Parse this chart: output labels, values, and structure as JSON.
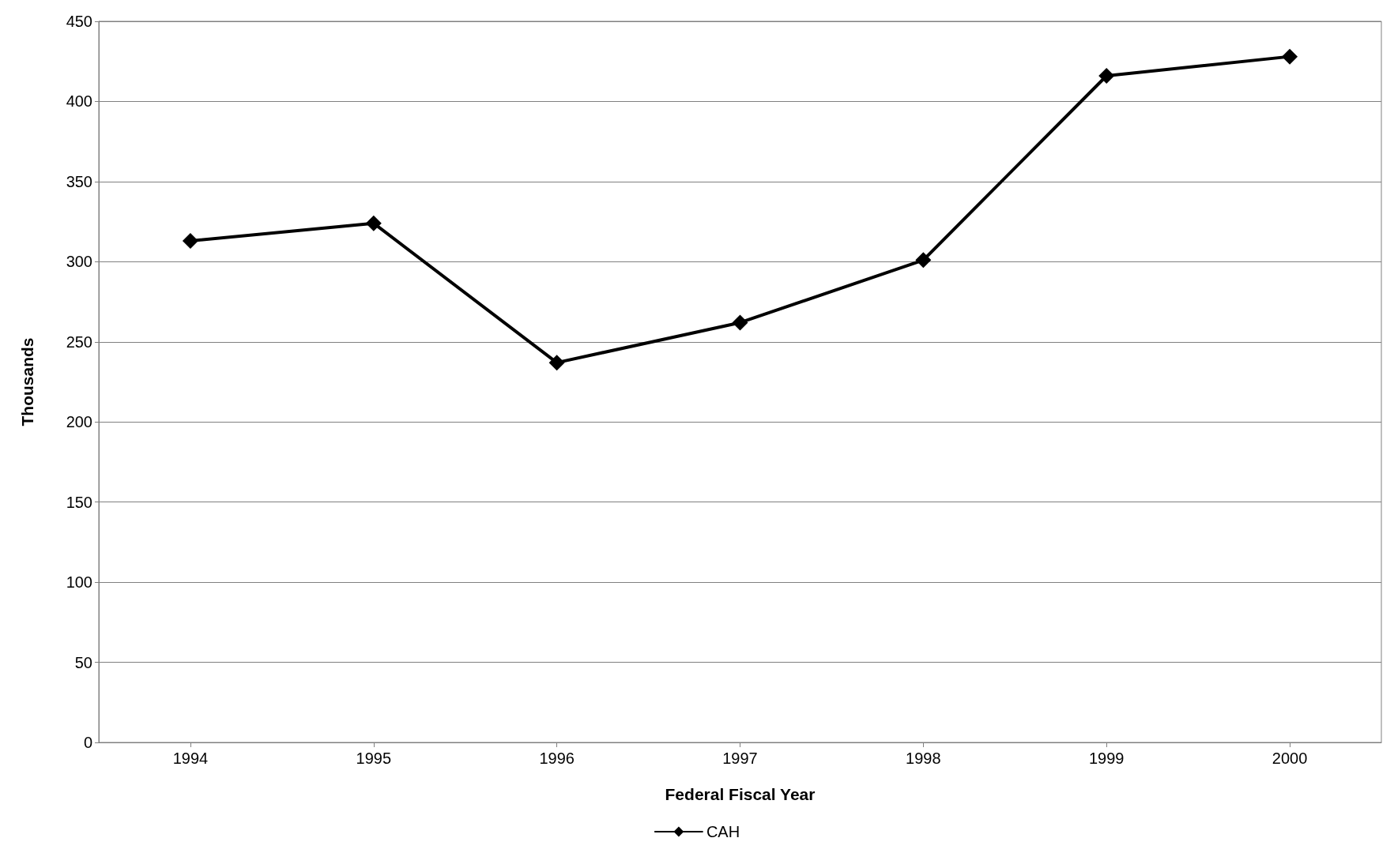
{
  "chart_data": {
    "type": "line",
    "xlabel": "Federal Fiscal Year",
    "ylabel": "Thousands",
    "categories": [
      "1994",
      "1995",
      "1996",
      "1997",
      "1998",
      "1999",
      "2000"
    ],
    "series": [
      {
        "name": "CAH",
        "color": "#000000",
        "values": [
          313,
          324,
          237,
          262,
          301,
          416,
          428
        ]
      }
    ],
    "ylim": [
      0,
      450
    ],
    "yticks": [
      0,
      50,
      100,
      150,
      200,
      250,
      300,
      350,
      400,
      450
    ],
    "grid": "y",
    "legend": "bottom",
    "marker": "diamond",
    "line_style": "solid"
  }
}
